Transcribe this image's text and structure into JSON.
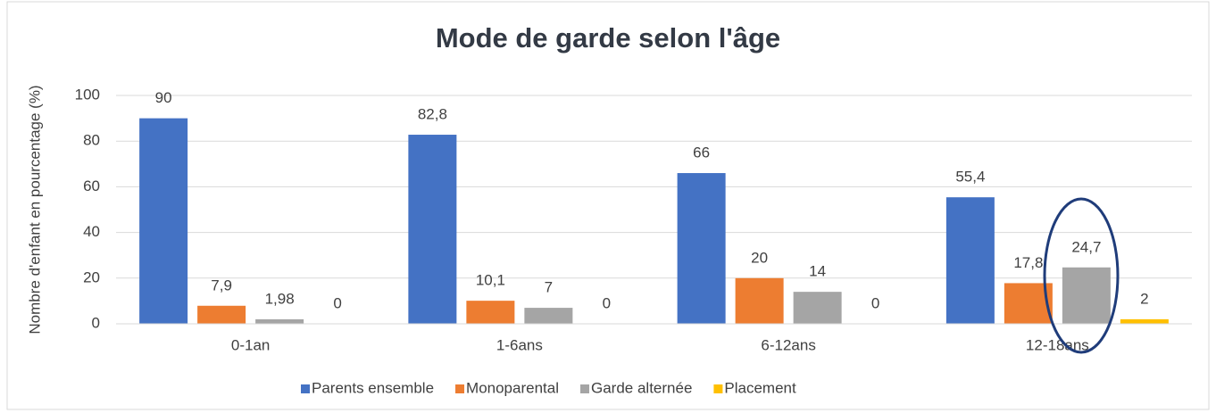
{
  "chart_data": {
    "type": "bar",
    "title": "Mode de garde selon l'âge",
    "y_label": "Nombre d'enfant en pourcentage (%)",
    "categories": [
      "0-1an",
      "1-6ans",
      "6-12ans",
      "12-18ans"
    ],
    "series": [
      {
        "name": "Parents ensemble",
        "color": "#4472c4",
        "values": [
          90,
          82.8,
          66,
          55.4
        ],
        "value_labels": [
          "90",
          "82,8",
          "66",
          "55,4"
        ]
      },
      {
        "name": "Monoparental",
        "color": "#ed7d31",
        "values": [
          7.9,
          10.1,
          20,
          17.8
        ],
        "value_labels": [
          "7,9",
          "10,1",
          "20",
          "17,8"
        ]
      },
      {
        "name": "Garde alternée",
        "color": "#a5a5a5",
        "values": [
          1.98,
          7,
          14,
          24.7
        ],
        "value_labels": [
          "1,98",
          "7",
          "14",
          "24,7"
        ]
      },
      {
        "name": "Placement",
        "color": "#ffc000",
        "values": [
          0,
          0,
          0,
          2
        ],
        "value_labels": [
          "0",
          "0",
          "0",
          "2"
        ]
      }
    ],
    "ylim": [
      0,
      100
    ],
    "yticks": [
      0,
      20,
      40,
      60,
      80,
      100
    ],
    "grid": true,
    "legend": "bottom"
  }
}
